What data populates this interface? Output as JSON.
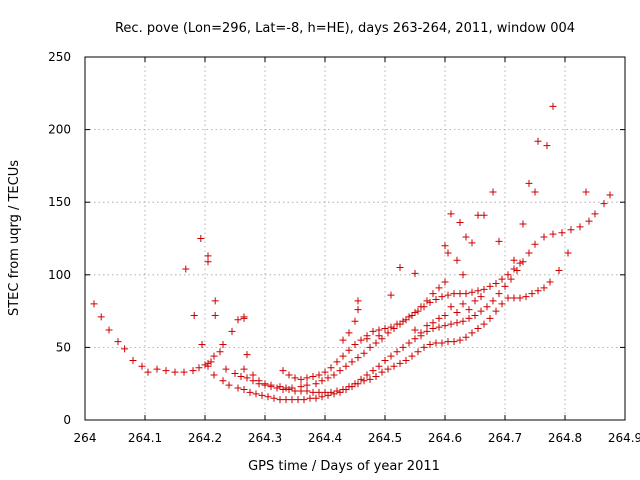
{
  "chart_data": {
    "type": "scatter",
    "title": "Rec. pove (Lon=296, Lat=-8, h=HE), days 263-264, 2011, window 004",
    "xlabel": "GPS time / Days of year 2011",
    "ylabel": "STEC from uqrg / TECUs",
    "xlim": [
      264,
      264.9
    ],
    "ylim": [
      0,
      250
    ],
    "x_ticks": [
      "264",
      "264.1",
      "264.2",
      "264.3",
      "264.4",
      "264.5",
      "264.6",
      "264.7",
      "264.8",
      "264.9"
    ],
    "y_ticks": [
      "0",
      "50",
      "100",
      "150",
      "200",
      "250"
    ],
    "grid": true,
    "marker": "+",
    "color": "#cc0000",
    "points": [
      [
        264.015,
        80
      ],
      [
        264.027,
        71
      ],
      [
        264.04,
        62
      ],
      [
        264.055,
        54
      ],
      [
        264.066,
        49
      ],
      [
        264.08,
        41
      ],
      [
        264.095,
        37
      ],
      [
        264.105,
        33
      ],
      [
        264.12,
        35
      ],
      [
        264.135,
        34
      ],
      [
        264.15,
        33
      ],
      [
        264.165,
        33
      ],
      [
        264.18,
        34
      ],
      [
        264.19,
        36
      ],
      [
        264.2,
        38
      ],
      [
        264.205,
        39
      ],
      [
        264.215,
        44
      ],
      [
        264.225,
        47
      ],
      [
        264.23,
        52
      ],
      [
        264.245,
        61
      ],
      [
        264.255,
        69
      ],
      [
        264.27,
        45
      ],
      [
        264.168,
        104
      ],
      [
        264.182,
        72
      ],
      [
        264.193,
        125
      ],
      [
        264.205,
        113
      ],
      [
        264.205,
        109
      ],
      [
        264.217,
        82
      ],
      [
        264.217,
        72
      ],
      [
        264.195,
        52
      ],
      [
        264.21,
        40
      ],
      [
        264.205,
        37
      ],
      [
        264.215,
        31
      ],
      [
        264.23,
        27
      ],
      [
        264.24,
        24
      ],
      [
        264.255,
        22
      ],
      [
        264.265,
        21
      ],
      [
        264.275,
        19
      ],
      [
        264.285,
        18
      ],
      [
        264.295,
        17
      ],
      [
        264.305,
        16
      ],
      [
        264.315,
        15
      ],
      [
        264.325,
        14
      ],
      [
        264.335,
        14
      ],
      [
        264.345,
        14
      ],
      [
        264.355,
        14
      ],
      [
        264.365,
        14
      ],
      [
        264.375,
        15
      ],
      [
        264.385,
        15
      ],
      [
        264.395,
        16
      ],
      [
        264.405,
        17
      ],
      [
        264.415,
        18
      ],
      [
        264.425,
        19
      ],
      [
        264.435,
        21
      ],
      [
        264.445,
        23
      ],
      [
        264.455,
        25
      ],
      [
        264.465,
        27
      ],
      [
        264.475,
        28
      ],
      [
        264.485,
        30
      ],
      [
        264.495,
        33
      ],
      [
        264.505,
        35
      ],
      [
        264.515,
        37
      ],
      [
        264.525,
        39
      ],
      [
        264.535,
        41
      ],
      [
        264.545,
        44
      ],
      [
        264.555,
        47
      ],
      [
        264.565,
        50
      ],
      [
        264.575,
        52
      ],
      [
        264.585,
        53
      ],
      [
        264.595,
        53
      ],
      [
        264.605,
        54
      ],
      [
        264.615,
        54
      ],
      [
        264.625,
        55
      ],
      [
        264.635,
        57
      ],
      [
        264.645,
        60
      ],
      [
        264.655,
        63
      ],
      [
        264.665,
        66
      ],
      [
        264.675,
        70
      ],
      [
        264.685,
        75
      ],
      [
        264.695,
        80
      ],
      [
        264.705,
        84
      ],
      [
        264.715,
        84
      ],
      [
        264.725,
        84
      ],
      [
        264.735,
        85
      ],
      [
        264.745,
        87
      ],
      [
        264.755,
        89
      ],
      [
        264.765,
        91
      ],
      [
        264.775,
        95
      ],
      [
        264.79,
        103
      ],
      [
        264.805,
        115
      ],
      [
        264.235,
        35
      ],
      [
        264.25,
        32
      ],
      [
        264.26,
        30
      ],
      [
        264.27,
        29
      ],
      [
        264.28,
        27
      ],
      [
        264.29,
        25
      ],
      [
        264.3,
        24
      ],
      [
        264.31,
        23
      ],
      [
        264.32,
        22
      ],
      [
        264.33,
        21
      ],
      [
        264.34,
        21
      ],
      [
        264.35,
        20
      ],
      [
        264.36,
        20
      ],
      [
        264.37,
        20
      ],
      [
        264.38,
        19
      ],
      [
        264.39,
        19
      ],
      [
        264.4,
        19
      ],
      [
        264.41,
        19
      ],
      [
        264.42,
        20
      ],
      [
        264.43,
        21
      ],
      [
        264.44,
        23
      ],
      [
        264.45,
        25
      ],
      [
        264.46,
        28
      ],
      [
        264.47,
        31
      ],
      [
        264.48,
        34
      ],
      [
        264.49,
        37
      ],
      [
        264.5,
        41
      ],
      [
        264.51,
        44
      ],
      [
        264.52,
        47
      ],
      [
        264.53,
        50
      ],
      [
        264.54,
        53
      ],
      [
        264.55,
        56
      ],
      [
        264.56,
        58
      ],
      [
        264.57,
        61
      ],
      [
        264.58,
        63
      ],
      [
        264.59,
        64
      ],
      [
        264.6,
        65
      ],
      [
        264.61,
        66
      ],
      [
        264.62,
        67
      ],
      [
        264.63,
        68
      ],
      [
        264.64,
        70
      ],
      [
        264.65,
        72
      ],
      [
        264.66,
        75
      ],
      [
        264.67,
        78
      ],
      [
        264.68,
        82
      ],
      [
        264.69,
        87
      ],
      [
        264.7,
        92
      ],
      [
        264.71,
        97
      ],
      [
        264.72,
        103
      ],
      [
        264.73,
        109
      ],
      [
        264.74,
        115
      ],
      [
        264.75,
        121
      ],
      [
        264.765,
        126
      ],
      [
        264.78,
        128
      ],
      [
        264.795,
        129
      ],
      [
        264.81,
        131
      ],
      [
        264.825,
        133
      ],
      [
        264.84,
        137
      ],
      [
        264.85,
        142
      ],
      [
        264.865,
        149
      ],
      [
        264.875,
        155
      ],
      [
        264.265,
        70
      ],
      [
        264.265,
        71
      ],
      [
        264.265,
        35
      ],
      [
        264.28,
        31
      ],
      [
        264.29,
        27
      ],
      [
        264.3,
        25
      ],
      [
        264.31,
        24
      ],
      [
        264.325,
        23
      ],
      [
        264.335,
        22
      ],
      [
        264.345,
        22
      ],
      [
        264.36,
        23
      ],
      [
        264.37,
        24
      ],
      [
        264.385,
        25
      ],
      [
        264.395,
        27
      ],
      [
        264.405,
        29
      ],
      [
        264.415,
        31
      ],
      [
        264.425,
        34
      ],
      [
        264.435,
        37
      ],
      [
        264.445,
        40
      ],
      [
        264.455,
        43
      ],
      [
        264.465,
        46
      ],
      [
        264.475,
        50
      ],
      [
        264.485,
        53
      ],
      [
        264.495,
        56
      ],
      [
        264.505,
        60
      ],
      [
        264.515,
        63
      ],
      [
        264.525,
        66
      ],
      [
        264.535,
        69
      ],
      [
        264.545,
        72
      ],
      [
        264.555,
        75
      ],
      [
        264.565,
        78
      ],
      [
        264.575,
        81
      ],
      [
        264.585,
        83
      ],
      [
        264.595,
        85
      ],
      [
        264.605,
        86
      ],
      [
        264.615,
        87
      ],
      [
        264.625,
        87
      ],
      [
        264.635,
        87
      ],
      [
        264.645,
        88
      ],
      [
        264.655,
        89
      ],
      [
        264.665,
        90
      ],
      [
        264.675,
        92
      ],
      [
        264.685,
        94
      ],
      [
        264.695,
        97
      ],
      [
        264.705,
        100
      ],
      [
        264.715,
        104
      ],
      [
        264.725,
        108
      ],
      [
        264.33,
        34
      ],
      [
        264.34,
        31
      ],
      [
        264.35,
        29
      ],
      [
        264.36,
        28
      ],
      [
        264.37,
        29
      ],
      [
        264.38,
        30
      ],
      [
        264.39,
        31
      ],
      [
        264.4,
        33
      ],
      [
        264.41,
        36
      ],
      [
        264.42,
        40
      ],
      [
        264.43,
        44
      ],
      [
        264.44,
        48
      ],
      [
        264.45,
        52
      ],
      [
        264.46,
        55
      ],
      [
        264.47,
        58
      ],
      [
        264.48,
        61
      ],
      [
        264.49,
        62
      ],
      [
        264.5,
        63
      ],
      [
        264.51,
        64
      ],
      [
        264.52,
        66
      ],
      [
        264.53,
        68
      ],
      [
        264.54,
        71
      ],
      [
        264.55,
        74
      ],
      [
        264.56,
        78
      ],
      [
        264.57,
        82
      ],
      [
        264.58,
        87
      ],
      [
        264.59,
        91
      ],
      [
        264.6,
        95
      ],
      [
        264.43,
        55
      ],
      [
        264.44,
        60
      ],
      [
        264.45,
        68
      ],
      [
        264.455,
        76
      ],
      [
        264.455,
        82
      ],
      [
        264.47,
        56
      ],
      [
        264.49,
        58
      ],
      [
        264.51,
        86
      ],
      [
        264.525,
        105
      ],
      [
        264.55,
        101
      ],
      [
        264.6,
        120
      ],
      [
        264.605,
        115
      ],
      [
        264.61,
        142
      ],
      [
        264.62,
        110
      ],
      [
        264.63,
        100
      ],
      [
        264.625,
        136
      ],
      [
        264.635,
        126
      ],
      [
        264.645,
        122
      ],
      [
        264.655,
        141
      ],
      [
        264.665,
        141
      ],
      [
        264.68,
        157
      ],
      [
        264.69,
        123
      ],
      [
        264.715,
        110
      ],
      [
        264.73,
        135
      ],
      [
        264.74,
        163
      ],
      [
        264.75,
        157
      ],
      [
        264.755,
        192
      ],
      [
        264.77,
        189
      ],
      [
        264.78,
        216
      ],
      [
        264.835,
        157
      ],
      [
        264.55,
        62
      ],
      [
        264.56,
        60
      ],
      [
        264.57,
        65
      ],
      [
        264.58,
        67
      ],
      [
        264.59,
        70
      ],
      [
        264.6,
        72
      ],
      [
        264.61,
        78
      ],
      [
        264.62,
        74
      ],
      [
        264.63,
        80
      ],
      [
        264.64,
        76
      ],
      [
        264.65,
        82
      ],
      [
        264.66,
        85
      ]
    ]
  }
}
